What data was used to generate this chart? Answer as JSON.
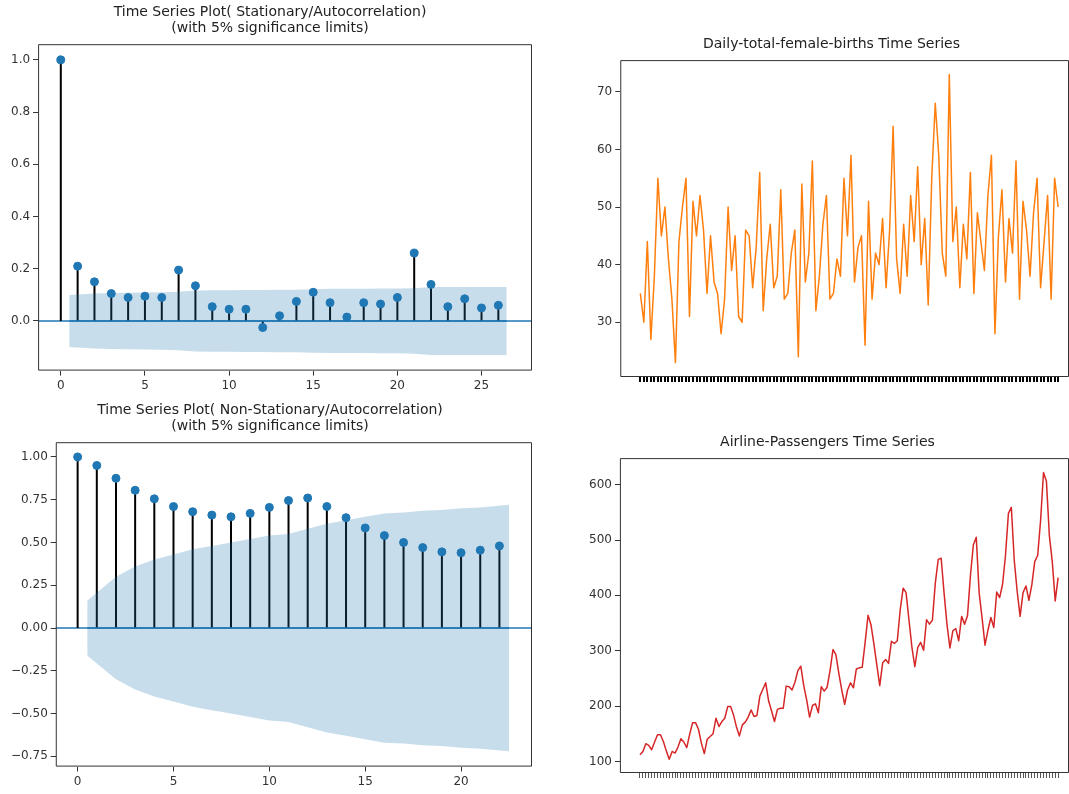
{
  "chart_data": [
    {
      "type": "lollipop",
      "title": "Time Series Plot( Stationary/Autocorrelation)\n(with 5% significance limits)",
      "x": [
        0,
        1,
        2,
        3,
        4,
        5,
        6,
        7,
        8,
        9,
        10,
        11,
        12,
        13,
        14,
        15,
        16,
        17,
        18,
        19,
        20,
        21,
        22,
        23,
        24,
        25,
        26
      ],
      "marker": "circle",
      "xlim": [
        -1.35,
        28
      ],
      "ylim": [
        -0.19,
        1.06
      ],
      "xticks": [
        0,
        5,
        10,
        15,
        20,
        25
      ],
      "yticks": [
        {
          "value": 0,
          "label": "0.0"
        },
        {
          "value": 0.2,
          "label": "0.2"
        },
        {
          "value": 0.4,
          "label": "0.4"
        },
        {
          "value": 0.6,
          "label": "0.6"
        },
        {
          "value": 0.8,
          "label": "0.8"
        },
        {
          "value": 1,
          "label": "1.0"
        }
      ],
      "series": [
        {
          "color": "#1f77b4",
          "values": [
            1.0,
            0.21,
            0.15,
            0.105,
            0.09,
            0.095,
            0.09,
            0.195,
            0.135,
            0.055,
            0.045,
            0.045,
            -0.025,
            0.02,
            0.075,
            0.11,
            0.07,
            0.015,
            0.07,
            0.065,
            0.09,
            0.26,
            0.14,
            0.055,
            0.085,
            0.05,
            0.06
          ]
        },
        {
          "type": "line",
          "marker": "none",
          "color": "#1f77b4",
          "x": [
            0.5,
            2,
            3,
            4,
            5,
            6,
            7,
            8,
            9,
            10,
            11,
            12,
            13,
            14,
            15,
            16,
            17,
            18,
            19,
            20,
            21,
            22,
            23,
            24,
            25,
            26.5
          ],
          "values": [
            0,
            0,
            0,
            0,
            0,
            0,
            0,
            0,
            0,
            0,
            0,
            0,
            0,
            0,
            0,
            0,
            0,
            0,
            0,
            0,
            0,
            0,
            0,
            0,
            0,
            0
          ],
          "upper": [
            0.1,
            0.105,
            0.107,
            0.108,
            0.109,
            0.11,
            0.112,
            0.117,
            0.118,
            0.118,
            0.119,
            0.119,
            0.12,
            0.12,
            0.122,
            0.123,
            0.123,
            0.123,
            0.124,
            0.124,
            0.125,
            0.13,
            0.13,
            0.13,
            0.13,
            0.13
          ],
          "lower": [
            -0.1,
            -0.105,
            -0.107,
            -0.108,
            -0.109,
            -0.11,
            -0.112,
            -0.117,
            -0.118,
            -0.118,
            -0.119,
            -0.119,
            -0.12,
            -0.12,
            -0.122,
            -0.123,
            -0.123,
            -0.123,
            -0.124,
            -0.124,
            -0.125,
            -0.13,
            -0.13,
            -0.13,
            -0.13,
            -0.13
          ]
        }
      ],
      "ref_lines": [
        {
          "axis": "y",
          "value": 0,
          "color": "#1f77b4"
        }
      ]
    },
    {
      "type": "line",
      "title": "Daily-total-female-births Time Series",
      "tick_labels": "y",
      "ylim": [
        20.5,
        75.5
      ],
      "yticks": [
        30,
        40,
        50,
        60,
        70
      ],
      "categories": [
        null,
        null,
        null,
        null,
        null,
        null,
        null,
        null,
        null,
        null,
        null,
        null,
        null,
        null,
        null,
        null,
        null,
        null,
        null,
        null,
        null,
        null,
        null,
        null,
        null,
        null,
        null,
        null,
        null,
        null,
        null,
        null,
        null,
        null,
        null,
        null,
        null,
        null,
        null,
        null,
        null,
        null,
        null,
        null,
        null,
        null,
        null,
        null,
        null,
        null,
        null,
        null,
        null,
        null,
        null,
        null,
        null,
        null,
        null,
        null,
        null,
        null,
        null,
        null,
        null,
        null,
        null,
        null,
        null,
        null,
        null,
        null,
        null,
        null,
        null,
        null,
        null,
        null,
        null,
        null,
        null,
        null,
        null,
        null,
        null,
        null,
        null,
        null,
        null,
        null,
        null,
        null,
        null,
        null,
        null,
        null,
        null,
        null,
        null,
        null,
        null,
        null,
        null,
        null,
        null,
        null,
        null,
        null,
        null,
        null,
        null,
        null,
        null,
        null,
        null,
        null,
        null,
        null,
        null,
        null
      ],
      "series": [
        {
          "color": "#ff7f0e",
          "values": [
            35,
            30,
            44,
            27,
            38,
            55,
            45,
            50,
            41,
            34,
            23,
            44,
            50,
            55,
            31,
            51,
            45,
            52,
            46,
            35,
            45,
            37,
            35,
            28,
            34,
            50,
            39,
            45,
            31,
            30,
            46,
            45,
            36,
            43,
            56,
            32,
            41,
            47,
            36,
            38,
            53,
            34,
            35,
            42,
            46,
            24,
            54,
            37,
            42,
            58,
            32,
            38,
            47,
            52,
            34,
            35,
            41,
            38,
            55,
            45,
            59,
            37,
            43,
            45,
            26,
            51,
            34,
            42,
            40,
            48,
            36,
            46,
            64,
            41,
            35,
            47,
            38,
            52,
            44,
            57,
            40,
            48,
            33,
            55,
            68,
            59,
            42,
            38,
            73,
            44,
            50,
            36,
            47,
            41,
            56,
            35,
            49,
            44,
            39,
            52,
            59,
            28,
            45,
            53,
            37,
            48,
            42,
            58,
            34,
            51,
            46,
            38,
            49,
            55,
            36,
            44,
            52,
            34,
            55,
            50
          ]
        }
      ]
    },
    {
      "type": "lollipop",
      "title": "Time Series Plot( Non-Stationary/Autocorrelation)\n(with 5% significance limits)",
      "x": [
        0,
        1,
        2,
        3,
        4,
        5,
        6,
        7,
        8,
        9,
        10,
        11,
        12,
        13,
        14,
        15,
        16,
        17,
        18,
        19,
        20,
        21,
        22
      ],
      "marker": "circle",
      "xlim": [
        -1.14,
        23.7
      ],
      "ylim": [
        -0.81,
        1.086
      ],
      "xticks": [
        0,
        5,
        10,
        15,
        20
      ],
      "yticks": [
        {
          "value": -0.75,
          "label": "−0.75"
        },
        {
          "value": -0.5,
          "label": "−0.50"
        },
        {
          "value": -0.25,
          "label": "−0.25"
        },
        {
          "value": 0,
          "label": "0.00"
        },
        {
          "value": 0.25,
          "label": "0.25"
        },
        {
          "value": 0.5,
          "label": "0.50"
        },
        {
          "value": 0.75,
          "label": "0.75"
        },
        {
          "value": 1,
          "label": "1.00"
        }
      ],
      "series": [
        {
          "color": "#1f77b4",
          "values": [
            1.0,
            0.95,
            0.875,
            0.805,
            0.755,
            0.71,
            0.68,
            0.66,
            0.65,
            0.67,
            0.705,
            0.745,
            0.76,
            0.71,
            0.645,
            0.585,
            0.54,
            0.5,
            0.47,
            0.445,
            0.44,
            0.455,
            0.48
          ]
        },
        {
          "type": "line",
          "marker": "none",
          "color": "#1f77b4",
          "x": [
            0.5,
            2,
            3,
            4,
            5,
            6,
            7,
            8,
            9,
            10,
            11,
            12,
            13,
            14,
            15,
            16,
            17,
            18,
            19,
            20,
            21,
            22.5
          ],
          "values": [
            0,
            0,
            0,
            0,
            0,
            0,
            0,
            0,
            0,
            0,
            0,
            0,
            0,
            0,
            0,
            0,
            0,
            0,
            0,
            0,
            0,
            0
          ],
          "upper": [
            0.16,
            0.3,
            0.36,
            0.4,
            0.43,
            0.46,
            0.48,
            0.5,
            0.52,
            0.54,
            0.55,
            0.58,
            0.61,
            0.63,
            0.65,
            0.67,
            0.675,
            0.685,
            0.69,
            0.7,
            0.705,
            0.72
          ],
          "lower": [
            -0.16,
            -0.3,
            -0.36,
            -0.4,
            -0.43,
            -0.46,
            -0.48,
            -0.5,
            -0.52,
            -0.54,
            -0.55,
            -0.58,
            -0.61,
            -0.63,
            -0.65,
            -0.67,
            -0.675,
            -0.685,
            -0.69,
            -0.7,
            -0.705,
            -0.72
          ]
        }
      ],
      "ref_lines": [
        {
          "axis": "y",
          "value": 0,
          "color": "#1f77b4"
        }
      ]
    },
    {
      "type": "line",
      "title": "Airline-Passengers Time Series",
      "tick_labels": "y",
      "ylim": [
        79,
        648
      ],
      "yticks": [
        100,
        200,
        300,
        400,
        500,
        600
      ],
      "categories": [
        null,
        null,
        null,
        null,
        null,
        null,
        null,
        null,
        null,
        null,
        null,
        null,
        null,
        null,
        null,
        null,
        null,
        null,
        null,
        null,
        null,
        null,
        null,
        null,
        null,
        null,
        null,
        null,
        null,
        null,
        null,
        null,
        null,
        null,
        null,
        null,
        null,
        null,
        null,
        null,
        null,
        null,
        null,
        null,
        null,
        null,
        null,
        null,
        null,
        null,
        null,
        null,
        null,
        null,
        null,
        null,
        null,
        null,
        null,
        null,
        null,
        null,
        null,
        null,
        null,
        null,
        null,
        null,
        null,
        null,
        null,
        null,
        null,
        null,
        null,
        null,
        null,
        null,
        null,
        null,
        null,
        null,
        null,
        null,
        null,
        null,
        null,
        null,
        null,
        null,
        null,
        null,
        null,
        null,
        null,
        null,
        null,
        null,
        null,
        null,
        null,
        null,
        null,
        null,
        null,
        null,
        null,
        null,
        null,
        null,
        null,
        null,
        null,
        null,
        null,
        null,
        null,
        null,
        null,
        null,
        null,
        null,
        null,
        null,
        null,
        null,
        null,
        null,
        null,
        null,
        null,
        null,
        null,
        null,
        null,
        null,
        null,
        null,
        null,
        null,
        null,
        null,
        null,
        null
      ],
      "series": [
        {
          "color": "#d62728",
          "values": [
            112,
            118,
            132,
            129,
            121,
            135,
            148,
            148,
            136,
            119,
            104,
            118,
            115,
            126,
            141,
            135,
            125,
            149,
            170,
            170,
            158,
            133,
            114,
            140,
            145,
            150,
            178,
            163,
            172,
            178,
            199,
            199,
            184,
            162,
            146,
            166,
            171,
            180,
            193,
            181,
            183,
            218,
            230,
            242,
            209,
            191,
            172,
            194,
            196,
            196,
            236,
            235,
            229,
            243,
            264,
            272,
            237,
            211,
            180,
            201,
            204,
            188,
            235,
            227,
            234,
            264,
            302,
            293,
            259,
            229,
            203,
            229,
            242,
            233,
            267,
            269,
            270,
            315,
            364,
            347,
            312,
            274,
            237,
            278,
            284,
            277,
            317,
            313,
            318,
            374,
            413,
            405,
            355,
            306,
            271,
            306,
            315,
            301,
            356,
            348,
            355,
            422,
            465,
            467,
            404,
            347,
            305,
            336,
            340,
            318,
            362,
            348,
            363,
            435,
            491,
            505,
            404,
            359,
            310,
            337,
            360,
            342,
            406,
            396,
            420,
            472,
            548,
            559,
            463,
            407,
            362,
            405,
            417,
            391,
            419,
            461,
            472,
            535,
            622,
            606,
            508,
            461,
            390,
            432
          ]
        }
      ]
    }
  ]
}
